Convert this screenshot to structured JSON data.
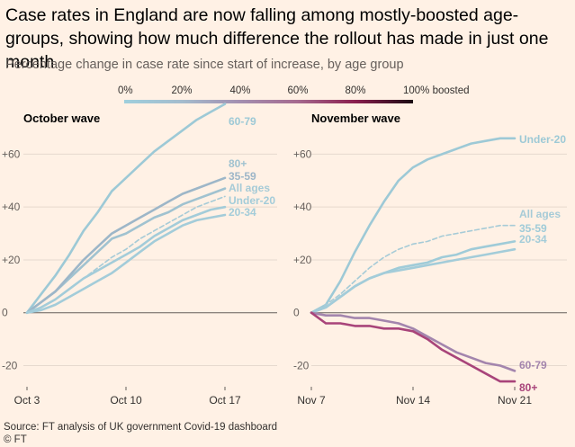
{
  "title": "Case rates in England are now falling among mostly-boosted age-groups, showing how much difference the rollout has made in just one month",
  "subtitle": "Percentage change in case rate since start of increase, by age group",
  "colorbar": {
    "labels": [
      "0%",
      "20%",
      "40%",
      "60%",
      "80%",
      "100% boosted"
    ],
    "stops": [
      "#9fcfdd",
      "#a4bccd",
      "#a38fb0",
      "#a56a8f",
      "#8a1e4e",
      "#1a0a12"
    ]
  },
  "footer": {
    "source": "Source: FT analysis of UK government Covid-19 dashboard",
    "copyright": "© FT"
  },
  "chart_data": [
    {
      "type": "line",
      "title": "October wave",
      "xlabel": "",
      "ylabel": "",
      "x_ticks": [
        "Oct 3",
        "Oct 10",
        "Oct 17"
      ],
      "x": [
        "Oct 3",
        "Oct 4",
        "Oct 5",
        "Oct 6",
        "Oct 7",
        "Oct 8",
        "Oct 9",
        "Oct 10",
        "Oct 11",
        "Oct 12",
        "Oct 13",
        "Oct 14",
        "Oct 15",
        "Oct 16",
        "Oct 17"
      ],
      "y_ticks": [
        "+60",
        "+40",
        "+20",
        "0",
        "-20"
      ],
      "ylim": [
        -28,
        70
      ],
      "grid": true,
      "series": [
        {
          "name": "60-79",
          "color": "#9dc9d6",
          "dashed": false,
          "values": [
            0,
            7,
            14,
            22,
            31,
            38,
            46,
            51,
            56,
            61,
            65,
            69,
            73,
            76,
            79
          ]
        },
        {
          "name": "80+",
          "color": "#a0c2d0",
          "dashed": false,
          "values": [
            0,
            4,
            8,
            13,
            18,
            23,
            28,
            30,
            33,
            36,
            38,
            41,
            43,
            45,
            47
          ]
        },
        {
          "name": "35-59",
          "color": "#9db6c8",
          "dashed": false,
          "values": [
            0,
            4,
            8,
            14,
            20,
            25,
            30,
            33,
            36,
            39,
            42,
            45,
            47,
            49,
            51
          ]
        },
        {
          "name": "All ages",
          "color": "#a6cbd7",
          "dashed": true,
          "values": [
            0,
            2,
            5,
            9,
            13,
            17,
            21,
            24,
            28,
            31,
            34,
            37,
            40,
            42,
            44
          ]
        },
        {
          "name": "Under-20",
          "color": "#a3ccd9",
          "dashed": false,
          "values": [
            0,
            2,
            5,
            9,
            13,
            16,
            19,
            22,
            25,
            29,
            32,
            35,
            37,
            39,
            40
          ]
        },
        {
          "name": "20-34",
          "color": "#a3ccd9",
          "dashed": false,
          "values": [
            0,
            1,
            3,
            6,
            9,
            12,
            15,
            19,
            23,
            27,
            30,
            33,
            35,
            36,
            37
          ]
        }
      ]
    },
    {
      "type": "line",
      "title": "November wave",
      "xlabel": "",
      "ylabel": "",
      "x_ticks": [
        "Nov 7",
        "Nov 14",
        "Nov 21"
      ],
      "x": [
        "Nov 7",
        "Nov 8",
        "Nov 9",
        "Nov 10",
        "Nov 11",
        "Nov 12",
        "Nov 13",
        "Nov 14",
        "Nov 15",
        "Nov 16",
        "Nov 17",
        "Nov 18",
        "Nov 19",
        "Nov 20",
        "Nov 21"
      ],
      "y_ticks": [
        "+60",
        "+40",
        "+20",
        "0",
        "-20"
      ],
      "ylim": [
        -28,
        70
      ],
      "grid": true,
      "series": [
        {
          "name": "Under-20",
          "color": "#9dc9d6",
          "dashed": false,
          "values": [
            0,
            3,
            12,
            23,
            33,
            42,
            50,
            55,
            58,
            60,
            62,
            64,
            65,
            66,
            66
          ]
        },
        {
          "name": "All ages",
          "color": "#a6cbd7",
          "dashed": true,
          "values": [
            0,
            3,
            7,
            12,
            17,
            21,
            24,
            26,
            27,
            29,
            30,
            31,
            32,
            33,
            33
          ]
        },
        {
          "name": "35-59",
          "color": "#9fcbd8",
          "dashed": false,
          "values": [
            0,
            2,
            6,
            10,
            13,
            15,
            17,
            18,
            19,
            21,
            22,
            24,
            25,
            26,
            27
          ]
        },
        {
          "name": "20-34",
          "color": "#a3ccd9",
          "dashed": false,
          "values": [
            0,
            2,
            6,
            10,
            13,
            15,
            16,
            17,
            18,
            19,
            20,
            21,
            22,
            23,
            24
          ]
        },
        {
          "name": "60-79",
          "color": "#a385ad",
          "dashed": false,
          "values": [
            0,
            -1,
            -1,
            -2,
            -2,
            -3,
            -4,
            -6,
            -9,
            -12,
            -15,
            -17,
            -19,
            -20,
            -22
          ]
        },
        {
          "name": "80+",
          "color": "#a8447a",
          "dashed": false,
          "values": [
            0,
            -4,
            -4,
            -5,
            -5,
            -6,
            -6,
            -7,
            -10,
            -14,
            -17,
            -20,
            -23,
            -26,
            -26
          ]
        }
      ]
    }
  ]
}
